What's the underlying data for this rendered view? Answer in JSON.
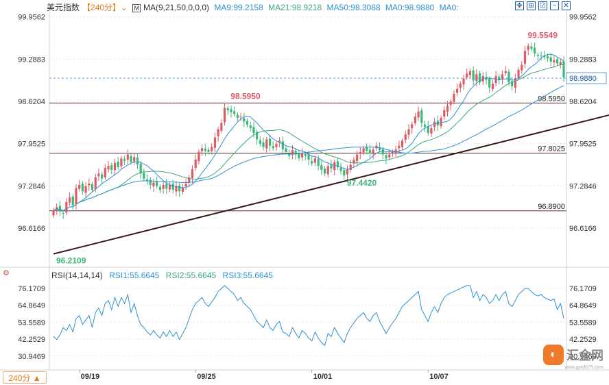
{
  "header": {
    "symbol": "美元指数",
    "period_tag": "【240分】",
    "dropdown_icon": "chevron-down-icon",
    "ma_label": "MA(9,21,50,0,0,0)",
    "ma9": "MA9:99.2158",
    "ma21": "MA21:98.9218",
    "ma50": "MA50:98.3088",
    "ma0a": "MA0:98.9880",
    "ma0b": "MA0:"
  },
  "tools": [
    {
      "name": "crosshair-icon",
      "glyph": "✥"
    },
    {
      "name": "grid-icon",
      "glyph": "⊞"
    },
    {
      "name": "checkbox-icon",
      "glyph": "☑"
    },
    {
      "name": "minus-icon",
      "glyph": "−"
    },
    {
      "name": "close-icon",
      "glyph": "✕"
    }
  ],
  "rsi_header": {
    "label": "RSI(14,14,14)",
    "rsi1": "RSI1:55.6645",
    "rsi2": "RSI2:55.6645",
    "rsi3": "RSI3:55.6645"
  },
  "period_button": {
    "label": "240分 ▲"
  },
  "logo": {
    "mark": "◐",
    "text": "汇金网",
    "sub": "www.gold678.com"
  },
  "colors": {
    "up": "#e05a66",
    "down": "#3cb878",
    "ma9": "#2e90d0",
    "ma21": "#3aa878",
    "ma50": "#2e90d0",
    "grid": "#e6e6e6",
    "trend": "#3b1a1a"
  },
  "chart_data": {
    "type": "candlestick",
    "price_axis": {
      "ticks": [
        99.9562,
        99.2883,
        98.6204,
        97.9525,
        97.2846,
        96.6166
      ],
      "ylim": [
        96.0,
        100.05
      ]
    },
    "rsi_axis": {
      "ticks": [
        76.1709,
        64.8649,
        53.5589,
        42.2529,
        30.9469
      ],
      "ylim": [
        24.0,
        82.0
      ]
    },
    "x_labels": [
      {
        "label": "09/19",
        "index": 8
      },
      {
        "label": "09/25",
        "index": 44
      },
      {
        "label": "10/01",
        "index": 80
      },
      {
        "label": "10/07",
        "index": 116
      }
    ],
    "horizontal_levels": [
      98.595,
      97.8025,
      96.89
    ],
    "level_labels": [
      "98.5950",
      "97.8025",
      "96.8900"
    ],
    "current_price": 98.988,
    "current_price_label": "98.9880",
    "annotations": [
      {
        "text": "96.2109",
        "index": 0,
        "value": 96.2109,
        "kind": "low"
      },
      {
        "text": "98.5950",
        "index": 54,
        "value": 98.595,
        "kind": "high"
      },
      {
        "text": "97.4420",
        "index": 90,
        "value": 97.442,
        "kind": "low"
      },
      {
        "text": "99.5549",
        "index": 146,
        "value": 99.5549,
        "kind": "high"
      }
    ],
    "trendline": {
      "from": {
        "index": 0,
        "value": 96.21
      },
      "to": {
        "index": 183,
        "value": 98.56
      }
    },
    "closes": [
      96.9,
      96.95,
      96.88,
      96.85,
      97.03,
      97.1,
      96.98,
      97.25,
      97.3,
      97.2,
      97.28,
      97.32,
      97.22,
      97.42,
      97.48,
      97.4,
      97.57,
      97.6,
      97.54,
      97.65,
      97.58,
      97.72,
      97.68,
      97.78,
      97.66,
      97.74,
      97.62,
      97.48,
      97.4,
      97.36,
      97.3,
      97.34,
      97.28,
      97.22,
      97.3,
      97.24,
      97.3,
      97.22,
      97.28,
      97.2,
      97.26,
      97.32,
      97.42,
      97.55,
      97.7,
      97.82,
      97.88,
      97.84,
      97.82,
      97.9,
      98.05,
      98.18,
      98.28,
      98.52,
      98.48,
      98.45,
      98.42,
      98.36,
      98.38,
      98.3,
      98.25,
      98.2,
      98.12,
      98.02,
      97.95,
      97.9,
      98.02,
      97.92,
      97.88,
      97.95,
      98.0,
      97.86,
      97.82,
      97.76,
      97.85,
      97.78,
      97.72,
      97.8,
      97.76,
      97.7,
      97.64,
      97.72,
      97.6,
      97.54,
      97.48,
      97.6,
      97.56,
      97.66,
      97.58,
      97.52,
      97.45,
      97.55,
      97.62,
      97.7,
      97.78,
      97.82,
      97.88,
      97.84,
      97.8,
      97.86,
      97.92,
      97.85,
      97.78,
      97.72,
      97.78,
      97.82,
      97.86,
      97.92,
      98.0,
      98.1,
      98.18,
      98.26,
      98.38,
      98.46,
      98.28,
      98.22,
      98.12,
      98.2,
      98.3,
      98.24,
      98.36,
      98.48,
      98.55,
      98.62,
      98.74,
      98.82,
      98.9,
      98.98,
      99.06,
      99.1,
      98.95,
      99.05,
      98.92,
      99.02,
      98.96,
      98.84,
      98.9,
      99.02,
      98.96,
      99.05,
      99.1,
      98.92,
      98.86,
      98.98,
      99.12,
      99.2,
      99.42,
      99.5,
      99.45,
      99.38,
      99.34,
      99.35,
      99.32,
      99.3,
      99.25,
      99.27,
      99.22,
      99.24,
      99.0
    ],
    "rsi": [
      44,
      42,
      45,
      50,
      48,
      52,
      47,
      56,
      58,
      52,
      55,
      58,
      50,
      60,
      63,
      58,
      66,
      68,
      62,
      70,
      64,
      70,
      66,
      72,
      60,
      66,
      58,
      52,
      50,
      47,
      45,
      48,
      45,
      43,
      47,
      44,
      48,
      44,
      47,
      42,
      46,
      50,
      56,
      62,
      66,
      68,
      70,
      66,
      64,
      67,
      70,
      74,
      76,
      78,
      76,
      74,
      72,
      68,
      70,
      66,
      64,
      62,
      58,
      54,
      52,
      50,
      55,
      50,
      48,
      52,
      54,
      47,
      46,
      44,
      50,
      46,
      43,
      48,
      46,
      43,
      41,
      47,
      43,
      40,
      38,
      46,
      44,
      50,
      46,
      43,
      40,
      46,
      50,
      53,
      56,
      58,
      60,
      56,
      54,
      58,
      60,
      54,
      50,
      46,
      50,
      53,
      56,
      60,
      64,
      66,
      68,
      70,
      72,
      74,
      62,
      58,
      54,
      60,
      64,
      60,
      66,
      70,
      72,
      73,
      74,
      75,
      76,
      77,
      78,
      78,
      70,
      74,
      68,
      72,
      70,
      66,
      68,
      72,
      68,
      72,
      74,
      66,
      64,
      68,
      72,
      74,
      76,
      76,
      74,
      72,
      71,
      72,
      70,
      69,
      68,
      69,
      62,
      66,
      56
    ]
  }
}
